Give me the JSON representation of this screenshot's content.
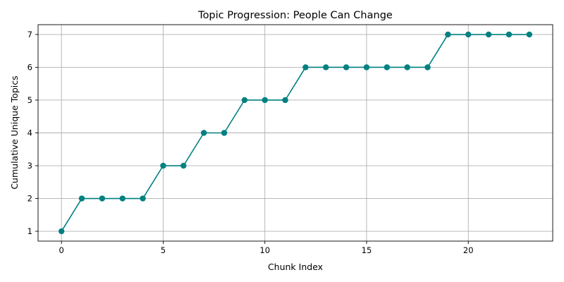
{
  "chart_data": {
    "type": "line",
    "title": "Topic Progression: People Can Change",
    "xlabel": "Chunk Index",
    "ylabel": "Cumulative Unique Topics",
    "x": [
      0,
      1,
      2,
      3,
      4,
      5,
      6,
      7,
      8,
      9,
      10,
      11,
      12,
      13,
      14,
      15,
      16,
      17,
      18,
      19,
      20,
      21,
      22,
      23
    ],
    "series": [
      {
        "values": [
          1,
          2,
          2,
          2,
          2,
          3,
          3,
          4,
          4,
          5,
          5,
          5,
          6,
          6,
          6,
          6,
          6,
          6,
          6,
          7,
          7,
          7,
          7,
          7
        ],
        "color": "#008080",
        "marker": "circle"
      }
    ],
    "xlim": [
      -1.15,
      24.15
    ],
    "ylim": [
      0.7,
      7.3
    ],
    "xticks": [
      0,
      5,
      10,
      15,
      20
    ],
    "yticks": [
      1,
      2,
      3,
      4,
      5,
      6,
      7
    ],
    "grid": true,
    "legend": "none"
  }
}
